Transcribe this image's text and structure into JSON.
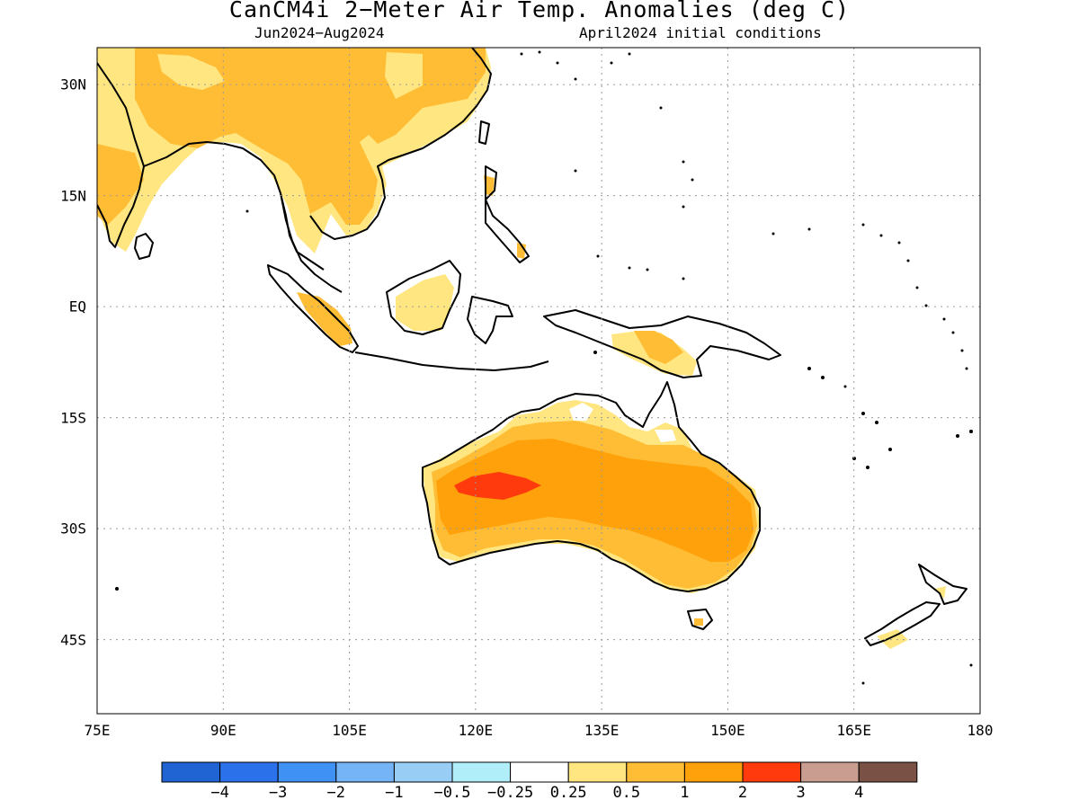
{
  "title": "CanCM4i 2−Meter Air Temp. Anomalies (deg C)",
  "subtitle_left": "Jun2024−Aug2024",
  "subtitle_right": "April2024 initial conditions",
  "map": {
    "projection": "equirectangular",
    "lon_range": [
      75,
      180
    ],
    "lat_range": [
      -55,
      35
    ],
    "gridlines": "dotted",
    "lat_ticks": [
      {
        "value": 30,
        "label": "30N"
      },
      {
        "value": 15,
        "label": "15N"
      },
      {
        "value": 0,
        "label": "EQ"
      },
      {
        "value": -15,
        "label": "15S"
      },
      {
        "value": -30,
        "label": "30S"
      },
      {
        "value": -45,
        "label": "45S"
      }
    ],
    "lon_ticks": [
      {
        "value": 75,
        "label": "75E"
      },
      {
        "value": 90,
        "label": "90E"
      },
      {
        "value": 105,
        "label": "105E"
      },
      {
        "value": 120,
        "label": "120E"
      },
      {
        "value": 135,
        "label": "135E"
      },
      {
        "value": 150,
        "label": "150E"
      },
      {
        "value": 165,
        "label": "165E"
      },
      {
        "value": 180,
        "label": "180"
      }
    ]
  },
  "colorbar": {
    "colors": [
      "#1f64d2",
      "#2b72ea",
      "#3f92f4",
      "#74b4f7",
      "#98cdf6",
      "#b0effa",
      "#ffffff",
      "#ffe680",
      "#ffbd35",
      "#ffa10a",
      "#ff3b0d",
      "#c99d8f",
      "#7a5145"
    ],
    "labels": [
      {
        "index": 1,
        "text": "−4"
      },
      {
        "index": 2,
        "text": "−3"
      },
      {
        "index": 3,
        "text": "−2"
      },
      {
        "index": 4,
        "text": "−1"
      },
      {
        "index": 5,
        "text": "−0.5"
      },
      {
        "index": 6,
        "text": "−0.25"
      },
      {
        "index": 7,
        "text": "0.25"
      },
      {
        "index": 8,
        "text": "0.5"
      },
      {
        "index": 9,
        "text": "1"
      },
      {
        "index": 10,
        "text": "2"
      },
      {
        "index": 11,
        "text": "3"
      },
      {
        "index": 12,
        "text": "4"
      }
    ]
  },
  "anomaly_colors": {
    "light": "#ffe680",
    "medium": "#ffbd35",
    "strong": "#ffa10a",
    "extreme": "#ff3b0d"
  }
}
